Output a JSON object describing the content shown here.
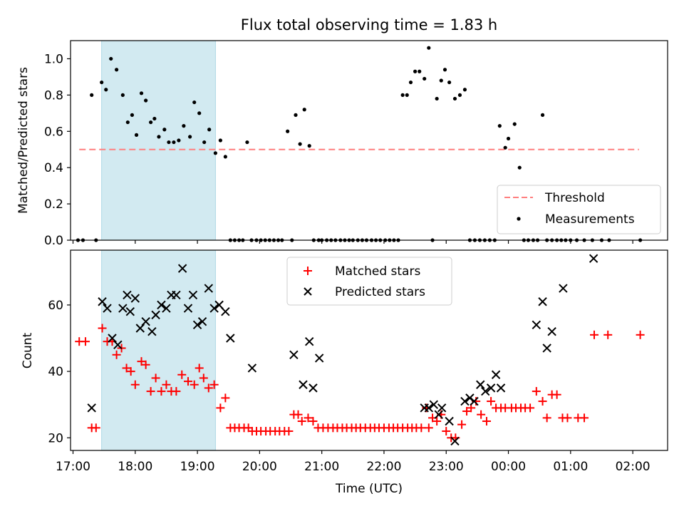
{
  "title": "Flux total observing time = 1.83 h",
  "chart_data": [
    {
      "type": "scatter",
      "panel": "top",
      "ylabel": "Matched/Predicted stars",
      "xlabel": "",
      "ylim": [
        0,
        1.1
      ],
      "xlim": [
        16.96,
        26.56
      ],
      "yticks": [
        0.0,
        0.2,
        0.4,
        0.6,
        0.8,
        1.0
      ],
      "ytick_labels": [
        "0.0",
        "0.2",
        "0.4",
        "0.6",
        "0.8",
        "1.0"
      ],
      "shaded_interval": [
        17.46,
        19.29
      ],
      "shade_color": "#add8e6",
      "legend_position": "lower right",
      "threshold": {
        "name": "Threshold",
        "y": 0.5,
        "x": [
          17.1,
          26.1
        ],
        "color": "#ff7f7f",
        "style": "dashed"
      },
      "series": [
        {
          "name": "Measurements",
          "color": "#000000",
          "marker": "dot",
          "x": [
            17.08,
            17.16,
            17.3,
            17.37,
            17.46,
            17.53,
            17.61,
            17.7,
            17.8,
            17.88,
            17.95,
            18.02,
            18.1,
            18.17,
            18.25,
            18.31,
            18.38,
            18.47,
            18.54,
            18.62,
            18.7,
            18.78,
            18.88,
            18.95,
            19.03,
            19.11,
            19.19,
            19.29,
            19.37,
            19.45,
            19.53,
            19.6,
            19.67,
            19.73,
            19.8,
            19.87,
            19.95,
            20.02,
            20.09,
            20.16,
            20.23,
            20.3,
            20.36,
            20.45,
            20.52,
            20.58,
            20.65,
            20.72,
            20.8,
            20.87,
            20.95,
            21.0,
            21.08,
            21.15,
            21.22,
            21.3,
            21.37,
            21.44,
            21.5,
            21.58,
            21.65,
            21.72,
            21.8,
            21.87,
            21.94,
            22.02,
            22.09,
            22.16,
            22.23,
            22.3,
            22.37,
            22.43,
            22.5,
            22.57,
            22.65,
            22.72,
            22.78,
            22.85,
            22.92,
            22.98,
            23.05,
            23.14,
            23.22,
            23.3,
            23.38,
            23.46,
            23.54,
            23.62,
            23.7,
            23.78,
            23.86,
            23.95,
            24.0,
            24.1,
            24.18,
            24.25,
            24.32,
            24.4,
            24.47,
            24.55,
            24.62,
            24.7,
            24.78,
            24.85,
            24.92,
            25.0,
            25.1,
            25.22,
            25.35,
            25.5,
            25.62,
            26.12
          ],
          "y": [
            0.0,
            0.0,
            0.8,
            0.0,
            0.87,
            0.83,
            1.0,
            0.94,
            0.8,
            0.65,
            0.69,
            0.58,
            0.81,
            0.77,
            0.65,
            0.67,
            0.57,
            0.61,
            0.54,
            0.54,
            0.55,
            0.63,
            0.57,
            0.76,
            0.7,
            0.54,
            0.61,
            0.48,
            0.55,
            0.46,
            0.0,
            0.0,
            0.0,
            0.0,
            0.54,
            0.0,
            0.0,
            0.0,
            0.0,
            0.0,
            0.0,
            0.0,
            0.0,
            0.6,
            0.0,
            0.69,
            0.53,
            0.72,
            0.52,
            0.0,
            0.0,
            0.0,
            0.0,
            0.0,
            0.0,
            0.0,
            0.0,
            0.0,
            0.0,
            0.0,
            0.0,
            0.0,
            0.0,
            0.0,
            0.0,
            0.0,
            0.0,
            0.0,
            0.0,
            0.8,
            0.8,
            0.87,
            0.93,
            0.93,
            0.89,
            1.06,
            0.0,
            0.78,
            0.88,
            0.94,
            0.87,
            0.78,
            0.8,
            0.83,
            0.0,
            0.0,
            0.0,
            0.0,
            0.0,
            0.0,
            0.63,
            0.51,
            0.56,
            0.64,
            0.4,
            0.0,
            0.0,
            0.0,
            0.0,
            0.69,
            0.0,
            0.0,
            0.0,
            0.0,
            0.0,
            0.0,
            0.0,
            0.0,
            0.0,
            0.0,
            0.0,
            0.0
          ]
        }
      ]
    },
    {
      "type": "scatter",
      "panel": "bottom",
      "ylabel": "Count",
      "xlabel": "Time (UTC)",
      "ylim": [
        16.2,
        76.5
      ],
      "xlim": [
        16.96,
        26.56
      ],
      "yticks": [
        20,
        40,
        60
      ],
      "ytick_labels": [
        "20",
        "40",
        "60"
      ],
      "xticks": [
        17,
        18,
        19,
        20,
        21,
        22,
        23,
        24,
        25,
        26
      ],
      "xtick_labels": [
        "17:00",
        "18:00",
        "19:00",
        "20:00",
        "21:00",
        "22:00",
        "23:00",
        "00:00",
        "01:00",
        "02:00"
      ],
      "shaded_interval": [
        17.46,
        19.29
      ],
      "shade_color": "#add8e6",
      "legend_position": "upper center",
      "series": [
        {
          "name": "Matched stars",
          "color": "#ff0000",
          "marker": "plus",
          "x": [
            17.1,
            17.2,
            17.3,
            17.37,
            17.47,
            17.55,
            17.63,
            17.7,
            17.78,
            17.86,
            17.93,
            18.0,
            18.1,
            18.17,
            18.25,
            18.33,
            18.42,
            18.5,
            18.58,
            18.66,
            18.75,
            18.85,
            18.95,
            19.03,
            19.1,
            19.18,
            19.27,
            19.37,
            19.45,
            19.53,
            19.6,
            19.67,
            19.75,
            19.82,
            19.88,
            19.95,
            20.02,
            20.1,
            20.17,
            20.25,
            20.32,
            20.4,
            20.47,
            20.55,
            20.62,
            20.68,
            20.78,
            20.86,
            20.94,
            21.02,
            21.1,
            21.18,
            21.25,
            21.33,
            21.4,
            21.48,
            21.55,
            21.62,
            21.7,
            21.78,
            21.85,
            21.92,
            22.0,
            22.08,
            22.15,
            22.22,
            22.3,
            22.38,
            22.45,
            22.52,
            22.6,
            22.68,
            22.72,
            22.78,
            22.85,
            22.92,
            23.0,
            23.08,
            23.15,
            23.25,
            23.33,
            23.4,
            23.48,
            23.56,
            23.65,
            23.72,
            23.8,
            23.88,
            23.95,
            24.05,
            24.12,
            24.2,
            24.27,
            24.35,
            24.45,
            24.55,
            24.62,
            24.7,
            24.78,
            24.87,
            24.95,
            25.12,
            25.22,
            25.38,
            25.6,
            26.12
          ],
          "y": [
            49,
            49,
            23,
            23,
            53,
            49,
            49,
            45,
            47,
            41,
            40,
            36,
            43,
            42,
            34,
            38,
            34,
            36,
            34,
            34,
            39,
            37,
            36,
            41,
            38,
            35,
            36,
            29,
            32,
            23,
            23,
            23,
            23,
            23,
            22,
            22,
            22,
            22,
            22,
            22,
            22,
            22,
            22,
            27,
            27,
            25,
            26,
            25,
            23,
            23,
            23,
            23,
            23,
            23,
            23,
            23,
            23,
            23,
            23,
            23,
            23,
            23,
            23,
            23,
            23,
            23,
            23,
            23,
            23,
            23,
            23,
            29,
            23,
            26,
            25,
            27,
            22,
            20,
            20,
            24,
            28,
            29,
            31,
            27,
            25,
            31,
            29,
            29,
            29,
            29,
            29,
            29,
            29,
            29,
            34,
            31,
            26,
            33,
            33,
            26,
            26,
            26,
            26,
            51,
            51,
            51
          ]
        },
        {
          "name": "Predicted stars",
          "color": "#000000",
          "marker": "x",
          "x": [
            17.3,
            17.47,
            17.55,
            17.63,
            17.72,
            17.8,
            17.87,
            17.92,
            18.0,
            18.08,
            18.17,
            18.27,
            18.33,
            18.42,
            18.5,
            18.58,
            18.66,
            18.76,
            18.85,
            18.93,
            19.0,
            19.08,
            19.18,
            19.27,
            19.35,
            19.45,
            19.53,
            19.88,
            20.55,
            20.7,
            20.8,
            20.86,
            20.96,
            22.65,
            22.72,
            22.8,
            22.88,
            22.93,
            23.05,
            23.14,
            23.3,
            23.38,
            23.45,
            23.55,
            23.63,
            23.72,
            23.8,
            23.88,
            24.45,
            24.55,
            24.62,
            24.7,
            24.88,
            25.37
          ],
          "y": [
            29,
            61,
            59,
            50,
            48,
            59,
            63,
            58,
            62,
            53,
            55,
            52,
            57,
            60,
            59,
            63,
            63,
            71,
            59,
            63,
            54,
            55,
            65,
            59,
            60,
            58,
            50,
            41,
            45,
            36,
            49,
            35,
            44,
            29,
            29,
            30,
            27,
            29,
            25,
            19,
            31,
            32,
            31,
            36,
            34,
            35,
            39,
            35,
            54,
            61,
            47,
            52,
            65,
            74
          ]
        }
      ]
    }
  ]
}
